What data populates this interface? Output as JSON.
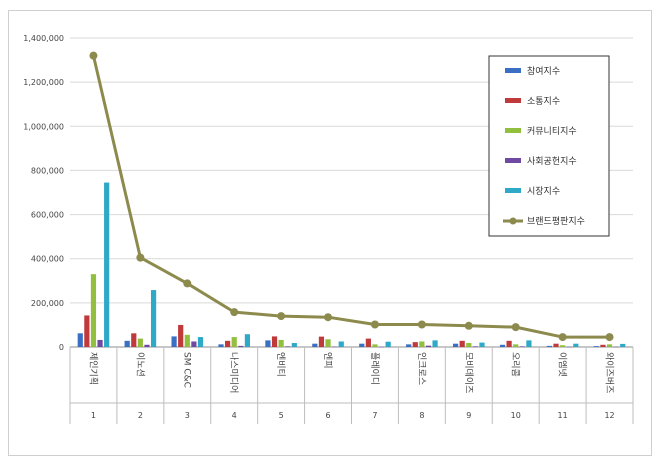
{
  "chart_data": {
    "type": "bar",
    "categories": [
      "제인기획",
      "이노션",
      "SM C&C",
      "나스미디어",
      "엔비티",
      "엔피",
      "플레이디",
      "인크로스",
      "모비데이즈",
      "오리콤",
      "이엠넷",
      "와이즈버즈"
    ],
    "indices": [
      "1",
      "2",
      "3",
      "4",
      "5",
      "6",
      "7",
      "8",
      "9",
      "10",
      "11",
      "12"
    ],
    "ylim": [
      0,
      1400000
    ],
    "yticks": [
      "0",
      "200,000",
      "400,000",
      "600,000",
      "800,000",
      "1,000,000",
      "1,200,000",
      "1,400,000"
    ],
    "ytick_values": [
      0,
      200000,
      400000,
      600000,
      800000,
      1000000,
      1200000,
      1400000
    ],
    "grid": true,
    "legend_position": "top-right",
    "series": [
      {
        "name": "참여지수",
        "kind": "bar",
        "color": "#3b6fc4",
        "values": [
          62000,
          28000,
          48000,
          12000,
          30000,
          15000,
          15000,
          12000,
          15000,
          10000,
          5000,
          4000
        ]
      },
      {
        "name": "소통지수",
        "kind": "bar",
        "color": "#c0393b",
        "values": [
          143000,
          62000,
          100000,
          28000,
          48000,
          47000,
          38000,
          22000,
          28000,
          28000,
          15000,
          10000
        ]
      },
      {
        "name": "커뮤니티지수",
        "kind": "bar",
        "color": "#93bf3f",
        "values": [
          330000,
          38000,
          55000,
          45000,
          32000,
          35000,
          12000,
          25000,
          18000,
          12000,
          8000,
          12000
        ]
      },
      {
        "name": "사회공헌지수",
        "kind": "bar",
        "color": "#6e4aa0",
        "values": [
          32000,
          10000,
          25000,
          5000,
          3000,
          2000,
          1000,
          6000,
          3000,
          3000,
          1000,
          1000
        ]
      },
      {
        "name": "시장지수",
        "kind": "bar",
        "color": "#2fa9c8",
        "values": [
          745000,
          258000,
          45000,
          58000,
          18000,
          25000,
          24000,
          30000,
          20000,
          30000,
          15000,
          14000
        ]
      },
      {
        "name": "브랜드평판지수",
        "kind": "line",
        "color": "#8c8a4c",
        "values": [
          1320000,
          405000,
          288000,
          158000,
          140000,
          135000,
          102000,
          102000,
          96000,
          90000,
          45000,
          45000
        ]
      }
    ]
  }
}
